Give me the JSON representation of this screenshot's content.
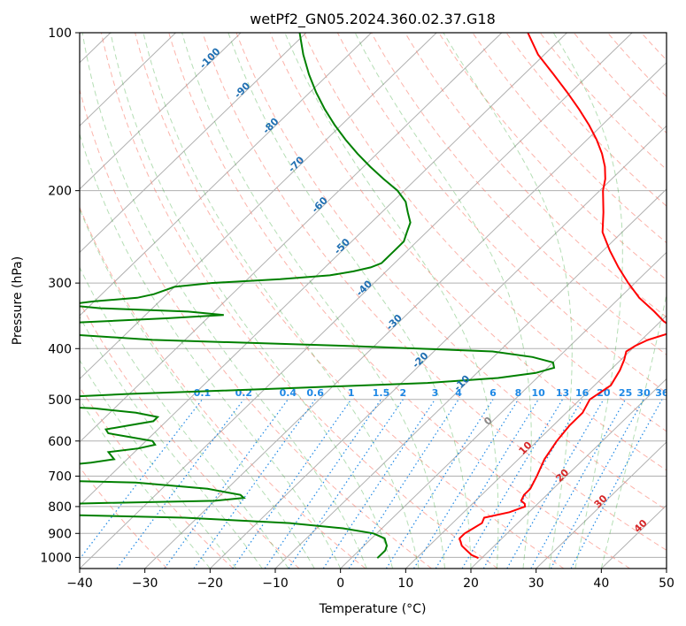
{
  "chart_data": {
    "type": "line",
    "title": "wetPf2_GN05.2024.360.02.37.G18",
    "xlabel": "Temperature (°C)",
    "ylabel": "Pressure (hPa)",
    "xlim": [
      -40,
      50
    ],
    "ylim": [
      1050,
      100
    ],
    "y_scale": "log",
    "skew": true,
    "grid": true,
    "x_ticks": [
      -40,
      -30,
      -20,
      -10,
      0,
      10,
      20,
      30,
      40,
      50
    ],
    "y_ticks": [
      100,
      200,
      300,
      400,
      500,
      600,
      700,
      800,
      900,
      1000
    ],
    "colors": {
      "temperature": "#ff0000",
      "dewpoint": "#008000",
      "dry_adiabats": "#fa8072",
      "moist_adiabats": "#2ca02c",
      "mixing_ratio": "#1e88e5",
      "isotherm_labels_neg": "#1f6fb2",
      "isotherm_labels_pos": "#d62728",
      "isotherm_zero": "#888888",
      "grid": "#b0b0b0"
    },
    "series": [
      {
        "name": "Temperature",
        "pressure": [
          1003,
          990,
          970,
          950,
          920,
          900,
          880,
          860,
          840,
          820,
          800,
          790,
          780,
          760,
          740,
          720,
          700,
          650,
          600,
          560,
          530,
          500,
          470,
          440,
          420,
          405,
          395,
          385,
          375,
          365,
          355,
          340,
          320,
          300,
          280,
          260,
          240,
          220,
          200,
          190,
          180,
          170,
          160,
          150,
          140,
          130,
          120,
          110,
          100
        ],
        "temperature": [
          19.5,
          18.0,
          16.5,
          15.0,
          13.5,
          13.5,
          14.0,
          14.5,
          14.0,
          17.0,
          18.5,
          18.0,
          17.0,
          16.5,
          16.5,
          16.0,
          15.5,
          14.0,
          13.0,
          12.5,
          12.5,
          11.5,
          12.5,
          11.5,
          10.5,
          9.5,
          10.0,
          11.0,
          13.0,
          13.0,
          10.5,
          7.5,
          3.0,
          -1.0,
          -5.0,
          -9.0,
          -13.0,
          -16.0,
          -19.5,
          -21.0,
          -23.0,
          -25.5,
          -28.5,
          -32.0,
          -36.0,
          -40.5,
          -45.5,
          -51.0,
          -56.0
        ]
      },
      {
        "name": "Dewpoint",
        "pressure": [
          1003,
          990,
          970,
          950,
          920,
          900,
          880,
          860,
          840,
          825,
          815,
          805,
          800,
          790,
          780,
          770,
          760,
          740,
          720,
          710,
          700,
          690,
          680,
          660,
          650,
          640,
          630,
          620,
          610,
          600,
          590,
          580,
          570,
          560,
          550,
          540,
          530,
          520,
          510,
          505,
          500,
          495,
          488,
          482,
          475,
          465,
          455,
          445,
          435,
          425,
          415,
          405,
          395,
          385,
          375,
          365,
          357,
          350,
          345,
          340,
          335,
          330,
          325,
          320,
          315,
          310,
          305,
          300,
          295,
          290,
          285,
          280,
          275,
          270,
          265,
          260,
          250,
          240,
          230,
          220,
          210,
          200,
          190,
          180,
          170,
          160,
          150,
          140,
          130,
          120,
          110,
          100
        ],
        "dewpoint": [
          4.0,
          4.0,
          4.0,
          3.5,
          2.0,
          -0.5,
          -6.0,
          -15.0,
          -32.0,
          -60.0,
          -75.0,
          -80.0,
          -72.0,
          -52.0,
          -30.0,
          -26.0,
          -27.0,
          -33.0,
          -45.0,
          -65.0,
          -80.0,
          -76.0,
          -65.0,
          -55.0,
          -52.0,
          -53.0,
          -54.0,
          -50.0,
          -48.0,
          -49.0,
          -53.0,
          -57.0,
          -58.0,
          -55.0,
          -52.0,
          -52.0,
          -56.0,
          -63.0,
          -78.0,
          -90.0,
          -85.0,
          -70.0,
          -60.0,
          -48.0,
          -35.0,
          -16.0,
          -6.0,
          -1.0,
          1.0,
          0.0,
          -4.0,
          -11.0,
          -35.0,
          -65.0,
          -80.0,
          -88.0,
          -80.0,
          -66.0,
          -58.0,
          -64.0,
          -78.0,
          -84.0,
          -80.0,
          -74.0,
          -72.0,
          -71.0,
          -70.0,
          -65.0,
          -55.0,
          -48.0,
          -45.0,
          -43.0,
          -42.0,
          -42.0,
          -42.0,
          -42.0,
          -42.0,
          -43.0,
          -44.0,
          -46.0,
          -48.0,
          -51.0,
          -55.0,
          -59.0,
          -63.0,
          -67.0,
          -71.0,
          -75.0,
          -79.0,
          -83.0,
          -87.0,
          -91.0
        ]
      }
    ],
    "isotherm_labels": {
      "negative": [
        "-100",
        "-90",
        "-80",
        "-70",
        "-60",
        "-50",
        "-40",
        "-30",
        "-20",
        "-10"
      ],
      "zero": "0",
      "positive": [
        "10",
        "20",
        "30",
        "40"
      ]
    },
    "mixing_ratio_labels": [
      "0.1",
      "0.2",
      "0.4",
      "0.6",
      "1",
      "1.5",
      "2",
      "3",
      "4",
      "6",
      "8",
      "10",
      "13",
      "16",
      "20",
      "25",
      "30",
      "36"
    ]
  }
}
